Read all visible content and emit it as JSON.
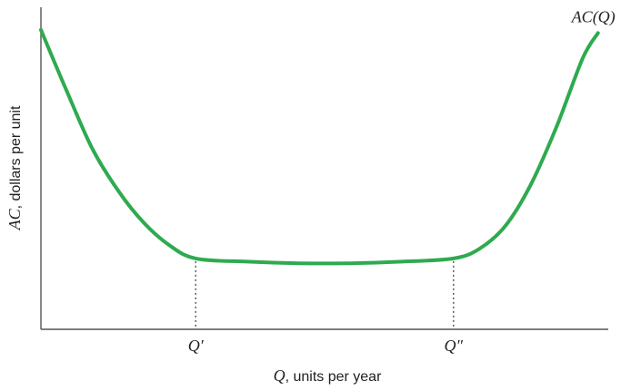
{
  "chart_data": {
    "type": "line",
    "title": "",
    "xlabel": {
      "symbol": "Q",
      "text": ", units per year"
    },
    "ylabel": {
      "symbol": "AC",
      "text": ", dollars per unit"
    },
    "x_ticks": [
      {
        "label": "Q′",
        "x": 3
      },
      {
        "label": "Q″",
        "x": 8
      }
    ],
    "xlim": [
      0,
      11
    ],
    "ylim": [
      0,
      10
    ],
    "series": [
      {
        "name": "AC(Q)",
        "color": "#2eaa4f",
        "x": [
          0,
          0.5,
          1,
          1.5,
          2,
          2.5,
          3,
          4,
          5,
          6,
          7,
          8,
          8.5,
          9,
          9.5,
          10,
          10.5,
          10.8
        ],
        "y": [
          9.3,
          7.4,
          5.6,
          4.3,
          3.3,
          2.6,
          2.2,
          2.1,
          2.05,
          2.05,
          2.1,
          2.2,
          2.5,
          3.2,
          4.5,
          6.3,
          8.4,
          9.2
        ]
      }
    ]
  }
}
